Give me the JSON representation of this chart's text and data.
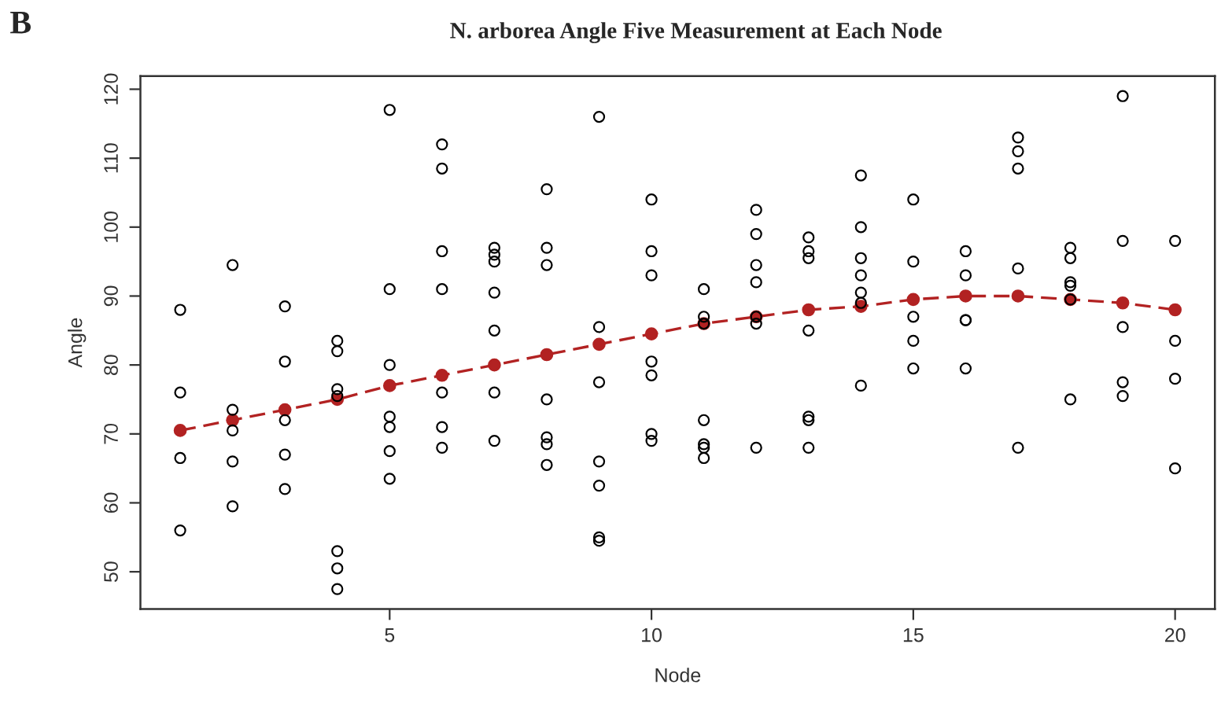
{
  "chart_data": {
    "type": "scatter",
    "title": "N. arborea Angle Five Measurement at Each Node",
    "xlabel": "Node",
    "ylabel": "Angle",
    "annotations": [
      "B"
    ],
    "xlim": [
      0.24,
      20.76
    ],
    "ylim": [
      44.6,
      121.9
    ],
    "xticks": [
      5,
      10,
      15,
      20
    ],
    "yticks": [
      50,
      60,
      70,
      80,
      90,
      100,
      110,
      120
    ],
    "grid": false,
    "series": [
      {
        "color": "#000000",
        "marker": "circle",
        "x": [
          1,
          1,
          1,
          1,
          2,
          2,
          2,
          2,
          2,
          3,
          3,
          3,
          3,
          3,
          4,
          4,
          4,
          4,
          4,
          4,
          4,
          5,
          5,
          5,
          5,
          5,
          5,
          5,
          6,
          6,
          6,
          6,
          6,
          6,
          6,
          7,
          7,
          7,
          7,
          7,
          7,
          7,
          8,
          8,
          8,
          8,
          8,
          8,
          8,
          9,
          9,
          9,
          9,
          9,
          9,
          9,
          10,
          10,
          10,
          10,
          10,
          10,
          10,
          11,
          11,
          11,
          11,
          11,
          11,
          11,
          12,
          12,
          12,
          12,
          12,
          12,
          12,
          13,
          13,
          13,
          13,
          13,
          13,
          13,
          14,
          14,
          14,
          14,
          14,
          14,
          14,
          15,
          15,
          15,
          15,
          15,
          16,
          16,
          16,
          16,
          16,
          17,
          17,
          17,
          17,
          17,
          18,
          18,
          18,
          18,
          18,
          18,
          19,
          19,
          19,
          19,
          19,
          20,
          20,
          20,
          20
        ],
        "values": [
          88,
          76,
          66.5,
          56,
          94.5,
          73.5,
          70.5,
          66,
          59.5,
          88.5,
          80.5,
          72,
          67,
          62,
          83.5,
          82,
          76.5,
          75.5,
          53,
          50.5,
          47.5,
          117,
          91,
          80,
          72.5,
          71,
          67.5,
          63.5,
          112,
          108.5,
          96.5,
          91,
          76,
          71,
          68,
          97,
          96,
          95,
          90.5,
          85,
          76,
          69,
          105.5,
          97,
          94.5,
          75,
          69.5,
          68.5,
          65.5,
          116,
          85.5,
          77.5,
          66,
          62.5,
          55,
          54.5,
          104,
          96.5,
          93,
          80.5,
          78.5,
          70,
          69,
          91,
          87,
          86,
          72,
          68.5,
          68,
          66.5,
          102.5,
          99,
          94.5,
          92,
          87,
          86,
          68,
          98.5,
          96.5,
          95.5,
          85,
          72.5,
          72,
          68,
          107.5,
          100,
          95.5,
          93,
          90.5,
          89,
          77,
          104,
          95,
          87,
          83.5,
          79.5,
          96.5,
          93,
          86.5,
          86.5,
          79.5,
          113,
          111,
          108.5,
          94,
          68,
          97,
          95.5,
          92,
          91.5,
          89.5,
          75,
          119,
          98,
          85.5,
          77.5,
          75.5,
          98,
          83.5,
          78,
          65
        ]
      },
      {
        "type": "line",
        "color": "#b22222",
        "marker": "circle",
        "line_style": "dashed",
        "x": [
          1,
          2,
          3,
          4,
          5,
          6,
          7,
          8,
          9,
          10,
          11,
          12,
          13,
          14,
          15,
          16,
          17,
          18,
          19,
          20
        ],
        "values": [
          70.5,
          72,
          73.5,
          75,
          77,
          78.5,
          80,
          81.5,
          83,
          84.5,
          86,
          87,
          88,
          88.5,
          89.5,
          90,
          90,
          89.5,
          89,
          88
        ]
      }
    ]
  }
}
